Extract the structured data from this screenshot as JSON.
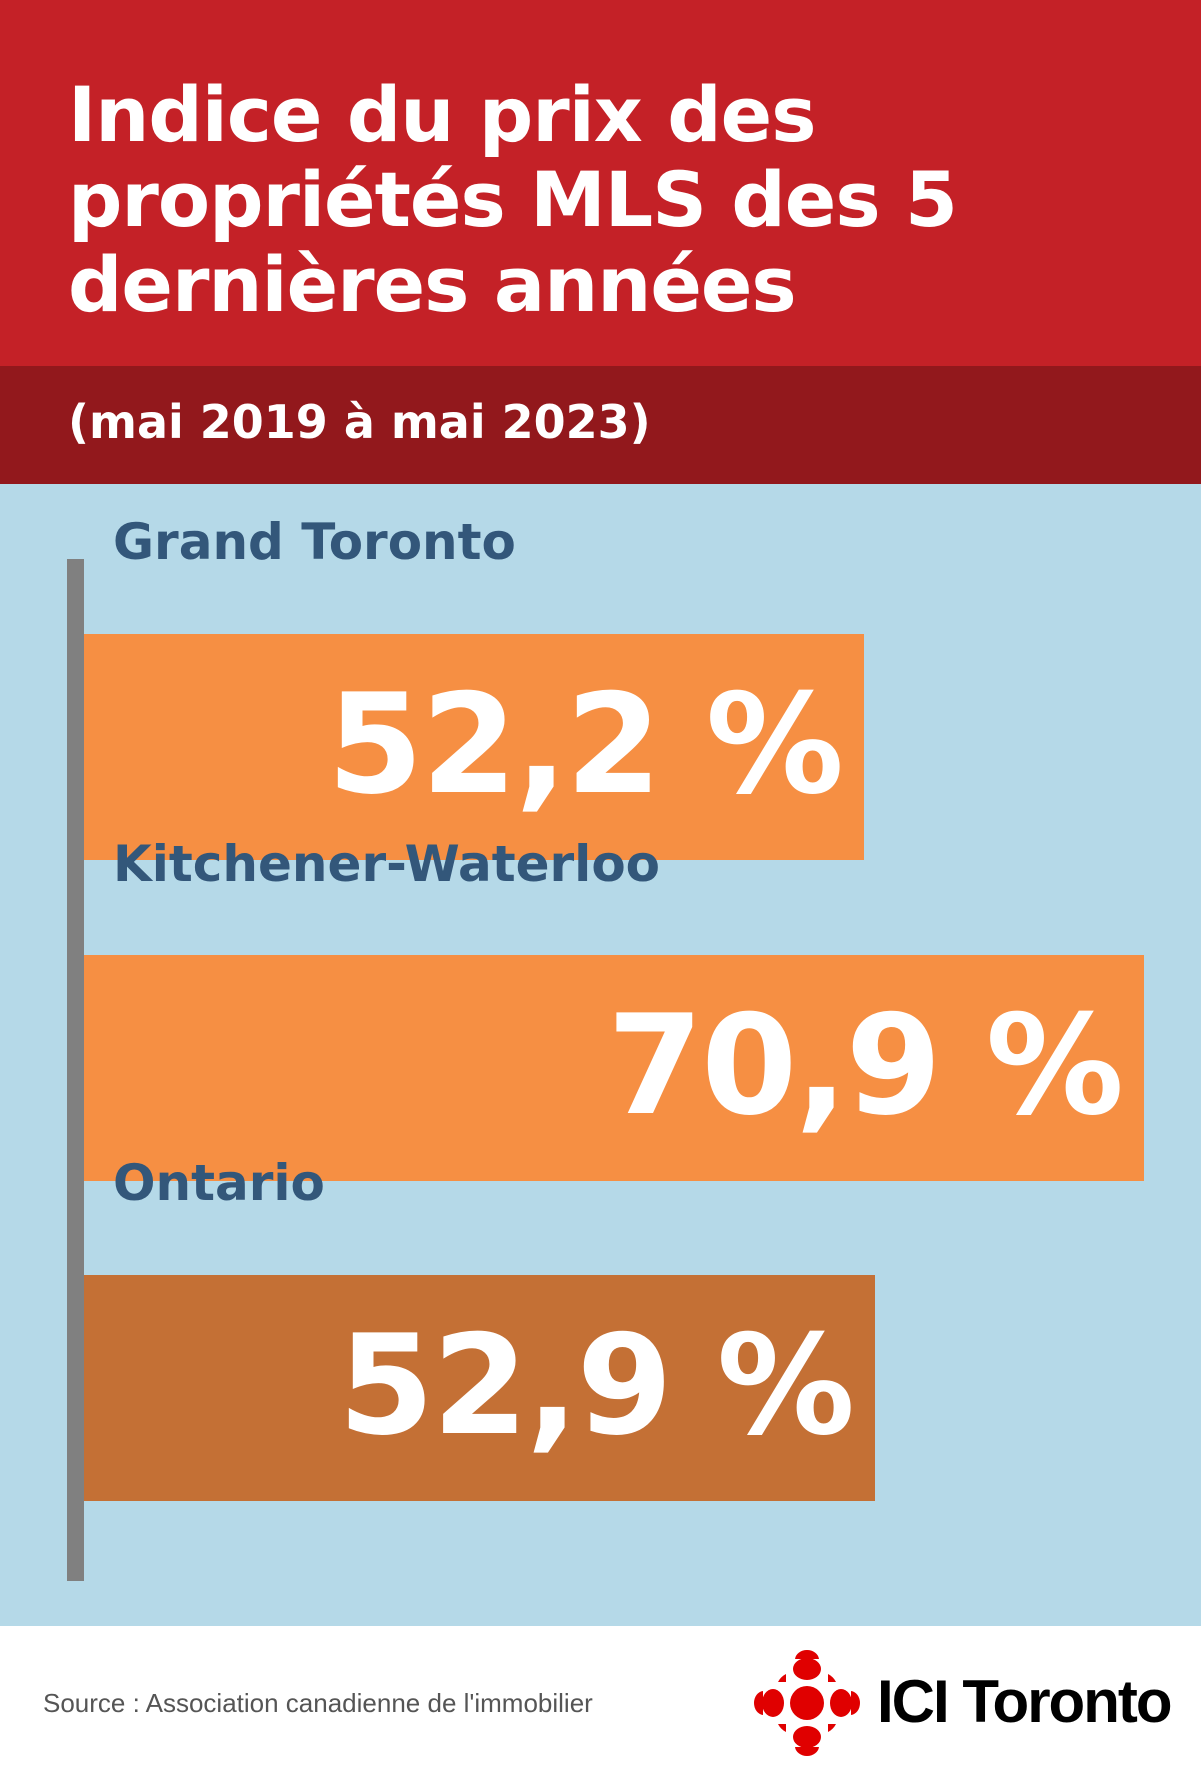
{
  "header": {
    "title": "Indice du prix des propriétés MLS des 5 dernières années",
    "subtitle": "(mai 2019 à mai 2023)"
  },
  "colors": {
    "header_red": "#C42127",
    "subheader_red": "#92181C",
    "background_blue": "#B5D9E8",
    "bar_orange": "#F68F43",
    "bar_ontario": "#C47035",
    "label_blue": "#33577A"
  },
  "chart_data": {
    "type": "bar",
    "orientation": "horizontal",
    "title": "Indice du prix des propriétés MLS des 5 dernières années",
    "subtitle": "(mai 2019 à mai 2023)",
    "categories": [
      "Grand Toronto",
      "Kitchener-Waterloo",
      "Ontario"
    ],
    "values": [
      52.2,
      70.9,
      52.9
    ],
    "value_labels": [
      "52,2 %",
      "70,9 %",
      "52,9 %"
    ],
    "unit": "%",
    "xlim": [
      0,
      70.9
    ],
    "grid": false
  },
  "footer": {
    "source": "Source : Association canadienne de l'immobilier",
    "brand": "ICI Toronto",
    "logo_icon": "radio-canada-gem-icon"
  }
}
